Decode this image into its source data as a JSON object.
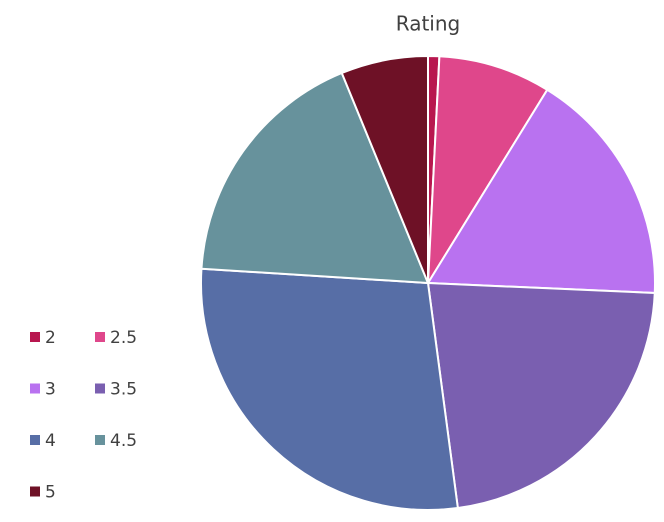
{
  "chart_data": {
    "type": "pie",
    "title": "Rating",
    "categories": [
      "2",
      "2.5",
      "3",
      "3.5",
      "4",
      "4.5",
      "5"
    ],
    "values": [
      0.8,
      8,
      16.9,
      22.2,
      28.1,
      17.8,
      6.2
    ],
    "colors": [
      "#b8174f",
      "#df478b",
      "#b972f0",
      "#7a5fb0",
      "#576ea6",
      "#67929c",
      "#6e1126"
    ],
    "legend": "left"
  }
}
